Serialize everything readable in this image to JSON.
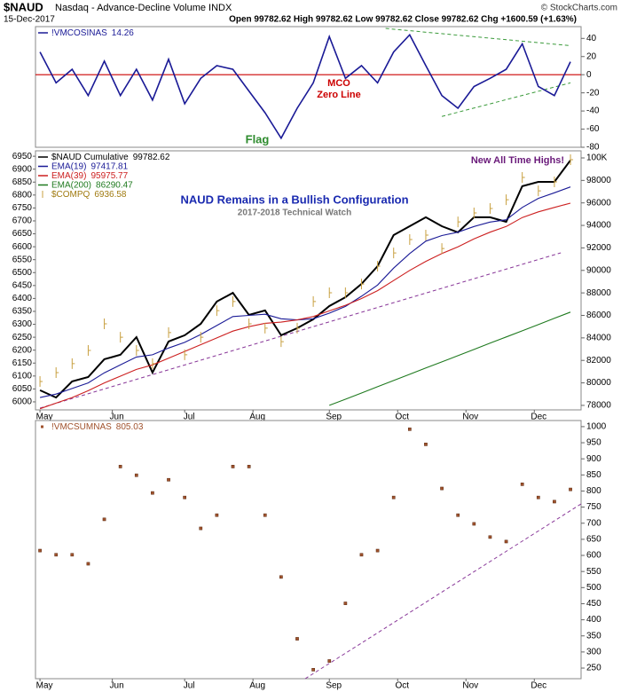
{
  "header": {
    "symbol": "$NAUD",
    "description": "Nasdaq - Advance-Decline Volume INDX",
    "date": "15-Dec-2017",
    "quote": "Open 99782.62 High 99782.62 Low 99782.62 Close 99782.62 Chg +1600.59 (+1.63%)",
    "copyright": "© StockCharts.com"
  },
  "chart_data": [
    {
      "type": "line",
      "yaxis_side": "right",
      "xlim": [
        -0.28,
        33.66
      ],
      "ylim": [
        -80,
        53
      ],
      "yticks": [
        40,
        20,
        0,
        -20,
        -40,
        -60,
        -80
      ],
      "series": [
        {
          "name": "!VMCOSINAS",
          "color": "#1a1a96",
          "values": [
            25,
            -9,
            6,
            -23,
            15,
            -23,
            6,
            -28,
            17,
            -32,
            -4,
            10,
            6,
            -18,
            -42,
            -70,
            -37,
            -9,
            42,
            -4,
            10,
            -9,
            25,
            44,
            10,
            -23,
            -37,
            -13,
            -4,
            6,
            34,
            -13,
            -23,
            14.26
          ]
        }
      ],
      "zero_line": {
        "value": 0,
        "color": "#cc0000"
      },
      "annotations": [
        {
          "text": "MCO",
          "color": "#cc0000"
        },
        {
          "text": "Zero Line",
          "color": "#cc0000"
        },
        {
          "text": "Flag",
          "color": "#2e8b2e"
        }
      ],
      "trendlines": [
        {
          "x": [
            21.5,
            33
          ],
          "y": [
            51,
            32
          ],
          "color": "#3a9a3a"
        },
        {
          "x": [
            25,
            33
          ],
          "y": [
            -46,
            -9
          ],
          "color": "#3a9a3a"
        }
      ]
    },
    {
      "type": "line",
      "title": "NAUD Remains in a Bullish Configuration",
      "subtitle": "2017-2018 Technical Watch",
      "annotation": "New All Time Highs!",
      "xlim": [
        -0.28,
        33.66
      ],
      "xticks": [
        {
          "value": 0,
          "label": "May"
        },
        {
          "value": 4.5,
          "label": "Jun"
        },
        {
          "value": 9,
          "label": "Jul"
        },
        {
          "value": 13.25,
          "label": "Aug"
        },
        {
          "value": 18,
          "label": "Sep"
        },
        {
          "value": 22.25,
          "label": "Oct"
        },
        {
          "value": 26.5,
          "label": "Nov"
        },
        {
          "value": 30.75,
          "label": "Dec"
        }
      ],
      "ylim": [
        5969,
        6971
      ],
      "yticks": [
        6000,
        6050,
        6100,
        6150,
        6200,
        6250,
        6300,
        6350,
        6400,
        6450,
        6500,
        6550,
        6600,
        6650,
        6700,
        6750,
        6800,
        6850,
        6900,
        6950
      ],
      "y2lim": [
        77600,
        100630
      ],
      "y2ticks": [
        78000,
        80000,
        82000,
        84000,
        86000,
        88000,
        90000,
        92000,
        94000,
        96000,
        98000,
        {
          "value": 100000,
          "label": "100K"
        }
      ],
      "series": [
        {
          "name": "$NAUD Cumulative",
          "color": "#000000",
          "axis": "y2",
          "values": [
            79340,
            78700,
            80130,
            80520,
            82100,
            82500,
            84070,
            80920,
            83680,
            84230,
            85250,
            87230,
            88000,
            86040,
            86440,
            84230,
            84860,
            85650,
            86830,
            87620,
            88800,
            90380,
            93140,
            93930,
            94720,
            93930,
            93380,
            94720,
            94720,
            94320,
            97480,
            97870,
            97870,
            99782.62
          ]
        },
        {
          "name": "EMA(19)",
          "color": "#1a1a96",
          "axis": "y2",
          "values": [
            78700,
            79000,
            79500,
            80000,
            80900,
            81600,
            82300,
            82500,
            83100,
            83600,
            84300,
            85100,
            85900,
            86000,
            86100,
            85700,
            85600,
            85700,
            86200,
            86800,
            87700,
            88700,
            90200,
            91500,
            92600,
            93100,
            93400,
            93900,
            94300,
            94500,
            95600,
            96400,
            96900,
            97417.81
          ]
        },
        {
          "name": "EMA(39)",
          "color": "#cc1f1f",
          "axis": "y2",
          "values": [
            77700,
            78200,
            78700,
            79300,
            80000,
            80600,
            81200,
            81600,
            82200,
            82800,
            83400,
            84000,
            84600,
            85000,
            85300,
            85400,
            85600,
            85900,
            86400,
            86900,
            87500,
            88200,
            89100,
            90000,
            90800,
            91500,
            92100,
            92800,
            93400,
            93900,
            94700,
            95200,
            95600,
            95975.77
          ]
        },
        {
          "name": "EMA(200)",
          "color": "#1f7a1f",
          "axis": "y2",
          "values": [
            null,
            null,
            null,
            null,
            null,
            null,
            null,
            null,
            null,
            null,
            null,
            null,
            null,
            null,
            null,
            null,
            null,
            null,
            78000,
            78550,
            79100,
            79660,
            80210,
            80760,
            81320,
            81870,
            82420,
            82970,
            83530,
            84080,
            84630,
            85180,
            85740,
            86290.47
          ]
        },
        {
          "name": "$COMPQ",
          "color": "#c8a040",
          "marker": "tick",
          "values": [
            6079,
            6113,
            6148,
            6199,
            6302,
            6250,
            6199,
            6148,
            6268,
            6182,
            6250,
            6353,
            6388,
            6302,
            6285,
            6233,
            6285,
            6388,
            6422,
            6422,
            6456,
            6525,
            6576,
            6628,
            6645,
            6593,
            6696,
            6731,
            6748,
            6782,
            6868,
            6816,
            6851,
            6936.58
          ]
        }
      ],
      "trendlines": [
        {
          "x": [
            0,
            32.4
          ],
          "y": [
            77760,
            91560
          ],
          "axis": "y2",
          "color": "#8a3a9a"
        }
      ]
    },
    {
      "type": "dots",
      "yaxis_side": "right",
      "xlim": [
        -0.28,
        33.66
      ],
      "xticks": [
        {
          "value": 0,
          "label": "May"
        },
        {
          "value": 4.5,
          "label": "Jun"
        },
        {
          "value": 9,
          "label": "Jul"
        },
        {
          "value": 13.25,
          "label": "Aug"
        },
        {
          "value": 18,
          "label": "Sep"
        },
        {
          "value": 22.25,
          "label": "Oct"
        },
        {
          "value": 26.5,
          "label": "Nov"
        },
        {
          "value": 30.75,
          "label": "Dec"
        }
      ],
      "ylim": [
        217,
        1019
      ],
      "yticks": [
        1000,
        950,
        900,
        850,
        800,
        750,
        700,
        650,
        600,
        550,
        500,
        450,
        400,
        350,
        300,
        250
      ],
      "series": [
        {
          "name": "!VMCSUMNAS",
          "color": "#a0522d",
          "values": [
            615,
            602,
            602,
            574,
            712,
            876,
            849,
            794,
            835,
            780,
            684,
            725,
            876,
            876,
            725,
            533,
            341,
            245,
            272,
            451,
            602,
            615,
            780,
            992,
            945,
            808,
            725,
            698,
            657,
            643,
            821,
            780,
            767,
            805.03
          ]
        }
      ],
      "trendlines": [
        {
          "x": [
            16.5,
            33.66
          ],
          "y": [
            217,
            760
          ],
          "color": "#8a3a9a"
        }
      ]
    }
  ]
}
